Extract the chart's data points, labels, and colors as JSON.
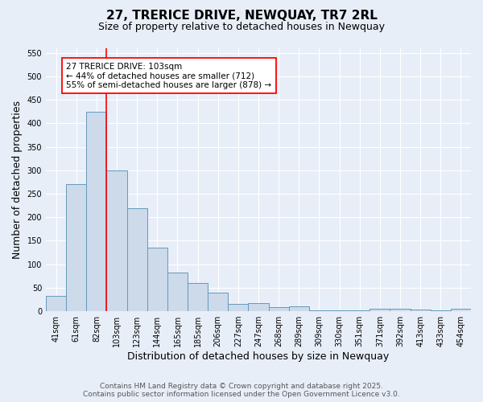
{
  "title": "27, TRERICE DRIVE, NEWQUAY, TR7 2RL",
  "subtitle": "Size of property relative to detached houses in Newquay",
  "xlabel": "Distribution of detached houses by size in Newquay",
  "ylabel": "Number of detached properties",
  "categories": [
    "41sqm",
    "61sqm",
    "82sqm",
    "103sqm",
    "123sqm",
    "144sqm",
    "165sqm",
    "185sqm",
    "206sqm",
    "227sqm",
    "247sqm",
    "268sqm",
    "289sqm",
    "309sqm",
    "330sqm",
    "351sqm",
    "371sqm",
    "392sqm",
    "413sqm",
    "433sqm",
    "454sqm"
  ],
  "values": [
    32,
    270,
    425,
    300,
    220,
    135,
    82,
    60,
    40,
    15,
    18,
    8,
    10,
    2,
    2,
    1,
    5,
    5,
    3,
    2,
    5
  ],
  "bar_color": "#ccdaea",
  "bar_edge_color": "#6699bb",
  "vline_color": "red",
  "annotation_text": "27 TRERICE DRIVE: 103sqm\n← 44% of detached houses are smaller (712)\n55% of semi-detached houses are larger (878) →",
  "annotation_box_color": "white",
  "annotation_box_edge": "red",
  "ylim": [
    0,
    560
  ],
  "yticks": [
    0,
    50,
    100,
    150,
    200,
    250,
    300,
    350,
    400,
    450,
    500,
    550
  ],
  "background_color": "#e8eef8",
  "footer_line1": "Contains HM Land Registry data © Crown copyright and database right 2025.",
  "footer_line2": "Contains public sector information licensed under the Open Government Licence v3.0.",
  "title_fontsize": 11,
  "subtitle_fontsize": 9,
  "axis_label_fontsize": 9,
  "tick_fontsize": 7,
  "annotation_fontsize": 7.5,
  "footer_fontsize": 6.5
}
